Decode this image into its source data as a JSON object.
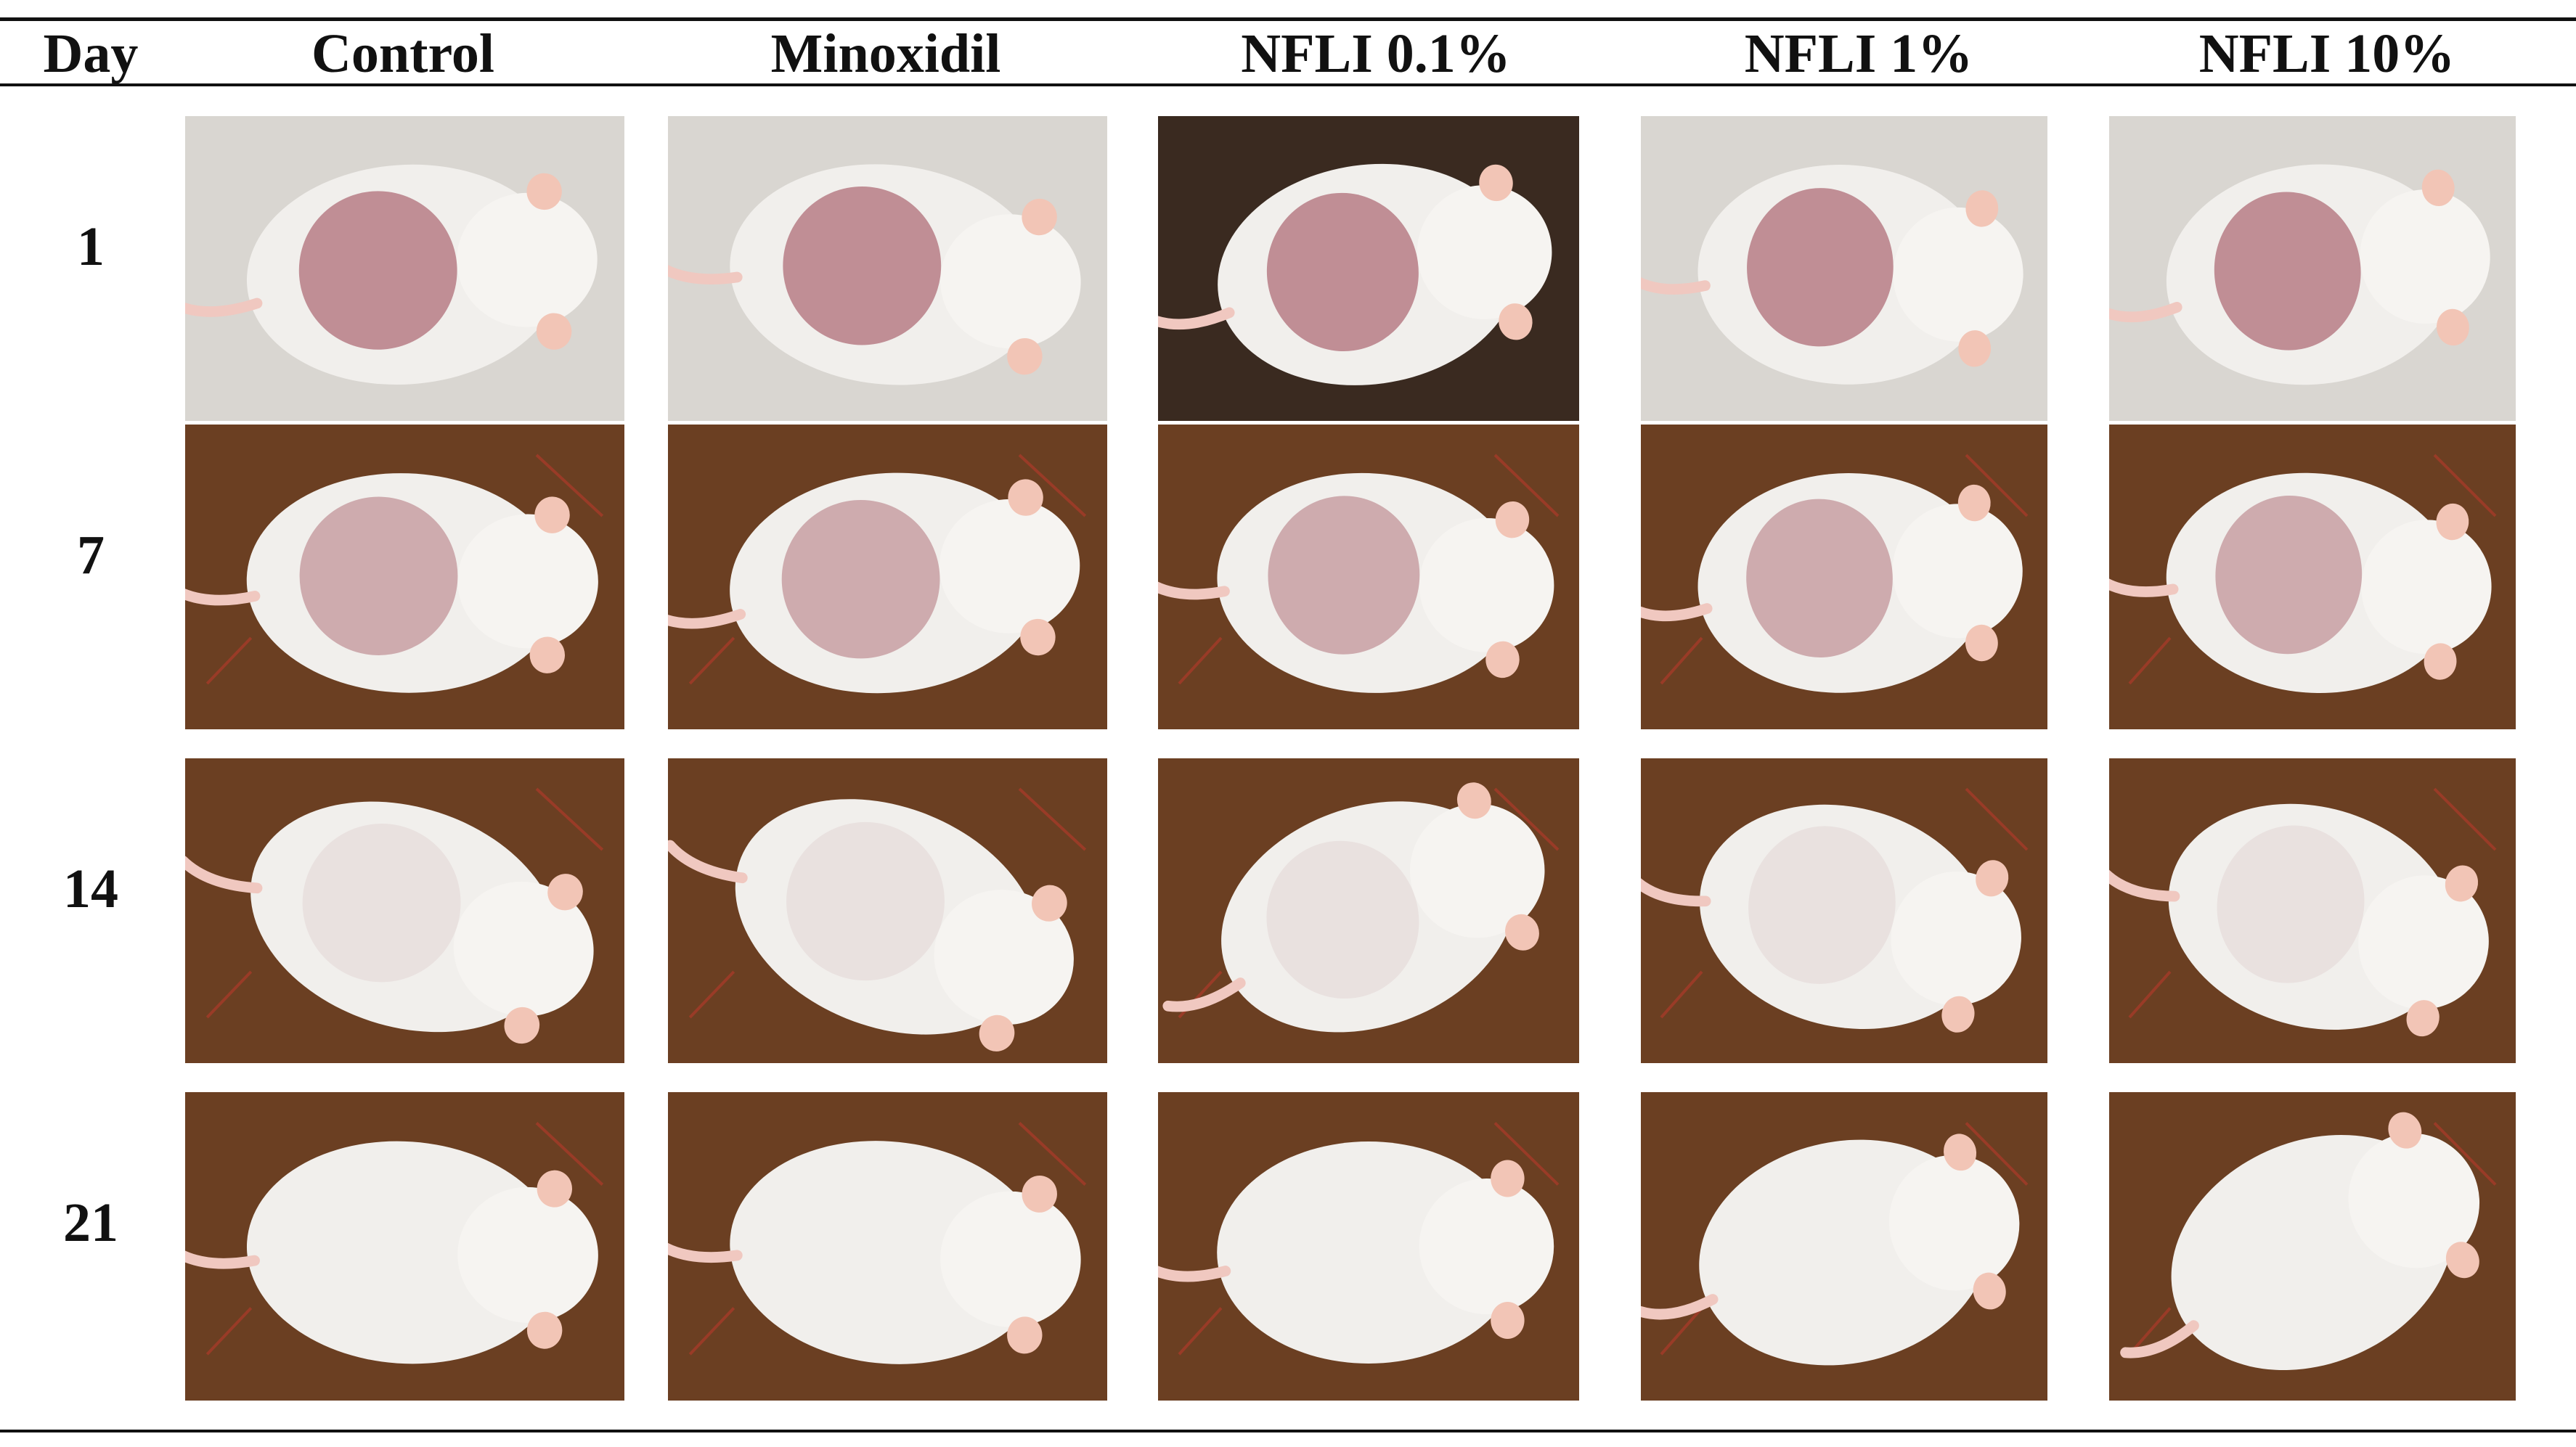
{
  "header": {
    "day_label": "Day",
    "columns": [
      "Control",
      "Minoxidil",
      "NFLI 0.1%",
      "NFLI 1%",
      "NFLI 10%"
    ]
  },
  "rows": [
    {
      "day": "1"
    },
    {
      "day": "7"
    },
    {
      "day": "14"
    },
    {
      "day": "21"
    }
  ],
  "colors": {
    "rule": "#111111",
    "background_day1": "#d9d6d1",
    "background_wood": "#6b3f22",
    "fur": "#f1efec",
    "shaved_skin": "#b77d86"
  }
}
